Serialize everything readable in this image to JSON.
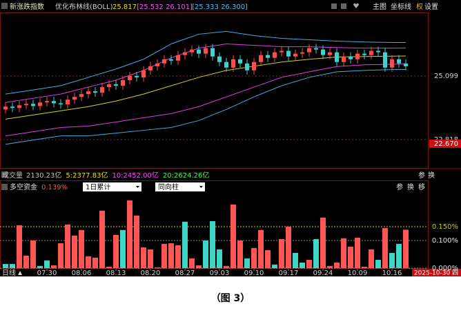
{
  "header": {
    "name": "新涨跌指数",
    "indicator": "优化布林线(BOLL)",
    "mid": "25.817",
    "band1": "[25.532 26.101]",
    "band2": "[25.333 26.300]",
    "toolbar": [
      "主图",
      "坐标线",
      "权",
      "设置"
    ]
  },
  "volume_row": {
    "label": "成交量",
    "items": [
      {
        "text": "2130.23亿",
        "color": "#c0c0c0"
      },
      {
        "text": "5:2377.83亿",
        "color": "#e0e000"
      },
      {
        "text": "10:2452.00亿",
        "color": "#ff50ff"
      },
      {
        "text": "20:2624.26亿",
        "color": "#40ff40"
      }
    ],
    "buttons": [
      "参",
      "换"
    ]
  },
  "fund_row": {
    "label": "多空资金",
    "value": "0.139%",
    "select1": "1日累计",
    "select2": "同向柱",
    "buttons": [
      "参",
      "换",
      "移"
    ]
  },
  "period": "日线",
  "date_box": "2025-10-30 四",
  "caption": "（图 3）",
  "chart_data": [
    {
      "type": "candlestick",
      "up_color": "#ff4d4d",
      "down_color": "#3fd0d0",
      "open": [
        23.9,
        24.0,
        23.95,
        24.05,
        24.1,
        24.02,
        24.15,
        24.2,
        24.12,
        24.08,
        24.25,
        24.35,
        24.45,
        24.55,
        24.5,
        24.7,
        24.8,
        24.75,
        24.95,
        25.1,
        25.05,
        25.3,
        25.45,
        25.55,
        25.7,
        25.65,
        25.85,
        25.95,
        26.05,
        25.9,
        26.1,
        25.8,
        25.6,
        25.4,
        25.7,
        25.55,
        25.3,
        25.6,
        25.85,
        25.75,
        25.95,
        26.0,
        25.8,
        25.9,
        25.95,
        26.1,
        26.05,
        25.85,
        25.95,
        25.6,
        25.8,
        25.7,
        25.9,
        25.85,
        26.0,
        25.95,
        25.4,
        25.7,
        25.55
      ],
      "high": [
        24.15,
        24.15,
        24.2,
        24.25,
        24.25,
        24.3,
        24.35,
        24.35,
        24.27,
        24.4,
        24.5,
        24.6,
        24.7,
        24.7,
        24.85,
        24.95,
        24.95,
        25.1,
        25.25,
        25.25,
        25.45,
        25.6,
        25.7,
        25.85,
        25.85,
        26.0,
        26.1,
        26.2,
        26.2,
        26.25,
        26.25,
        25.95,
        25.75,
        25.85,
        25.85,
        25.7,
        25.75,
        26.0,
        26.0,
        26.1,
        26.15,
        26.15,
        26.05,
        26.1,
        26.25,
        26.25,
        26.2,
        26.1,
        26.1,
        25.95,
        25.95,
        26.05,
        26.05,
        26.15,
        26.15,
        26.1,
        25.85,
        25.85,
        25.7
      ],
      "low": [
        23.75,
        23.8,
        23.8,
        23.9,
        23.87,
        23.87,
        24.0,
        23.97,
        23.93,
        23.93,
        24.1,
        24.2,
        24.3,
        24.35,
        24.35,
        24.55,
        24.6,
        24.6,
        24.8,
        24.9,
        24.9,
        25.15,
        25.3,
        25.4,
        25.5,
        25.5,
        25.7,
        25.8,
        25.75,
        25.75,
        25.65,
        25.45,
        25.25,
        25.25,
        25.4,
        25.15,
        25.15,
        25.45,
        25.6,
        25.6,
        25.8,
        25.65,
        25.65,
        25.75,
        25.8,
        25.9,
        25.7,
        25.7,
        25.45,
        25.45,
        25.55,
        25.55,
        25.7,
        25.7,
        25.8,
        25.25,
        25.25,
        25.4,
        25.3
      ],
      "close": [
        24.0,
        23.95,
        24.05,
        24.1,
        24.02,
        24.15,
        24.2,
        24.12,
        24.08,
        24.25,
        24.35,
        24.45,
        24.55,
        24.5,
        24.7,
        24.8,
        24.75,
        24.95,
        25.1,
        25.05,
        25.3,
        25.45,
        25.55,
        25.7,
        25.65,
        25.85,
        25.95,
        26.05,
        25.9,
        26.1,
        25.8,
        25.6,
        25.4,
        25.7,
        25.55,
        25.3,
        25.6,
        25.85,
        25.75,
        25.95,
        26.0,
        25.8,
        25.9,
        25.95,
        26.1,
        26.05,
        25.85,
        25.95,
        25.6,
        25.8,
        25.7,
        25.9,
        25.85,
        26.0,
        25.95,
        25.4,
        25.7,
        25.55,
        25.45
      ],
      "line_x": [
        0,
        4,
        8,
        12,
        16,
        20,
        24,
        28,
        32,
        36,
        40,
        44,
        48,
        52,
        56,
        58
      ],
      "lines": [
        {
          "color": "#d8d020",
          "values": [
            23.55,
            23.7,
            23.85,
            24.0,
            24.2,
            24.45,
            24.75,
            25.05,
            25.3,
            25.45,
            25.6,
            25.7,
            25.78,
            25.8,
            25.81,
            25.817
          ]
        },
        {
          "color": "#e040e0",
          "values": [
            24.15,
            24.3,
            24.45,
            24.7,
            24.95,
            25.3,
            25.75,
            26.1,
            26.25,
            26.2,
            26.15,
            26.15,
            26.12,
            26.1,
            26.1,
            26.101
          ]
        },
        {
          "color": "#e040e0",
          "values": [
            22.95,
            23.1,
            23.25,
            23.3,
            23.45,
            23.6,
            23.75,
            24.0,
            24.35,
            24.7,
            25.05,
            25.25,
            25.44,
            25.5,
            25.52,
            25.532
          ]
        },
        {
          "color": "#40b0e0",
          "values": [
            24.45,
            24.6,
            24.75,
            25.05,
            25.35,
            25.7,
            26.25,
            26.6,
            26.7,
            26.55,
            26.45,
            26.4,
            26.35,
            26.32,
            26.3,
            26.3
          ]
        },
        {
          "color": "#40b0e0",
          "values": [
            22.65,
            22.8,
            22.95,
            22.95,
            23.05,
            23.15,
            23.25,
            23.5,
            23.9,
            24.35,
            24.75,
            25.05,
            25.25,
            25.3,
            25.33,
            25.333
          ]
        }
      ],
      "ylim": [
        21.8,
        27.33
      ],
      "yticks": [
        25.099,
        22.818
      ],
      "grid": true,
      "marker": {
        "value": 22.67,
        "label": "22.670"
      }
    },
    {
      "type": "bar",
      "categories": [
        null,
        null,
        null,
        null,
        null,
        null,
        "07.30",
        null,
        null,
        null,
        null,
        "08.06",
        null,
        null,
        null,
        null,
        "08.13",
        null,
        null,
        null,
        null,
        "08.20",
        null,
        null,
        null,
        null,
        "08.27",
        null,
        null,
        null,
        null,
        "09.03",
        null,
        null,
        null,
        null,
        "09.10",
        null,
        null,
        null,
        null,
        "09.17",
        null,
        null,
        null,
        null,
        "09.24",
        null,
        null,
        null,
        null,
        "10.09",
        null,
        null,
        null,
        null,
        "10.16",
        null,
        null
      ],
      "values": [
        0.015,
        0.015,
        0.155,
        0.045,
        0.1,
        0.008,
        0.028,
        0.01,
        0.09,
        0.158,
        0.118,
        0.138,
        0.043,
        0.038,
        0.208,
        0.005,
        0.12,
        0.138,
        0.245,
        0.19,
        0.075,
        0.068,
        0.003,
        0.088,
        0.09,
        0.083,
        0.168,
        0.035,
        0.01,
        0.1,
        0.17,
        0.068,
        0.008,
        0.23,
        0.1,
        0.035,
        0.073,
        0.138,
        0.065,
        0.013,
        0.105,
        0.15,
        0.055,
        0.02,
        0.03,
        0.105,
        0.183,
        0.008,
        0.02,
        0.108,
        0.078,
        0.11,
        0.005,
        0.068,
        0.03,
        0.145,
        0.055,
        0.088,
        0.139
      ],
      "colors": [
        "#3ed6c6",
        "#3ed6c6",
        "#ff5555",
        "#ff5555",
        "#ff5555",
        "#3ed6c6",
        "#3ed6c6",
        "#ff5555",
        "#ff5555",
        "#ff5555",
        "#ff5555",
        "#ff5555",
        "#ff5555",
        "#ff5555",
        "#ff5555",
        "#ff5555",
        "#ff5555",
        "#3ed6c6",
        "#ff5555",
        "#ff5555",
        "#ff5555",
        "#ff5555",
        "#ff5555",
        "#ff5555",
        "#ff5555",
        "#ff5555",
        "#3ed6c6",
        "#ff5555",
        "#ff5555",
        "#3ed6c6",
        "#3ed6c6",
        "#3ed6c6",
        "#ff5555",
        "#ff5555",
        "#ff5555",
        "#3ed6c6",
        "#ff5555",
        "#ff5555",
        "#ff5555",
        "#3ed6c6",
        "#ff5555",
        "#ff5555",
        "#3ed6c6",
        "#3ed6c6",
        "#ff5555",
        "#3ed6c6",
        "#ff5555",
        "#ff5555",
        "#ff5555",
        "#ff5555",
        "#ff5555",
        "#ff5555",
        "#ff5555",
        "#ff5555",
        "#3ed6c6",
        "#ff5555",
        "#3ed6c6",
        "#3ed6c6",
        "#ff5555"
      ],
      "ylim": [
        0,
        0.27
      ],
      "yticks": [
        {
          "value": 0.15,
          "label": "0.150%"
        },
        {
          "value": 0.1,
          "label": "0.100%"
        },
        {
          "value": 0,
          "label": "0.000%"
        }
      ],
      "tick_colors": [
        "#c8c820",
        "#909090",
        "#909090"
      ],
      "grid": true
    }
  ]
}
